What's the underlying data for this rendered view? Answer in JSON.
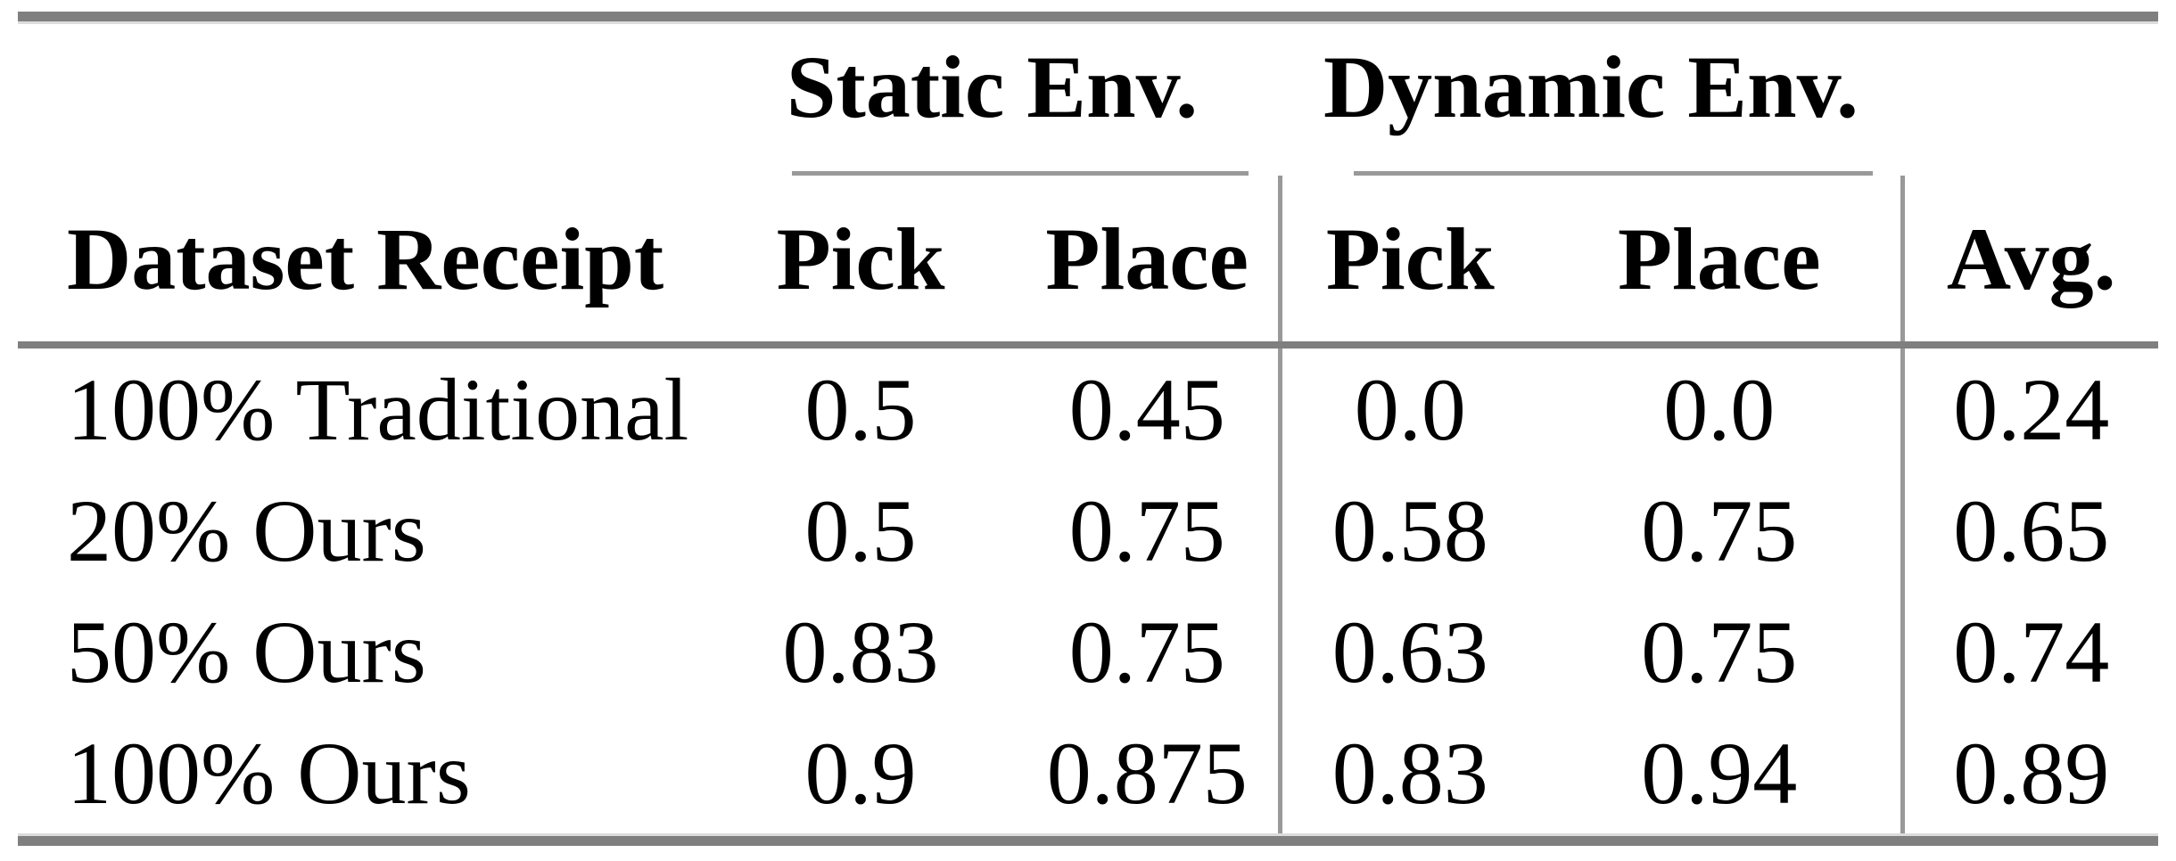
{
  "page": {
    "background": "#ffffff"
  },
  "table": {
    "group_headers": [
      {
        "label": "Static Env."
      },
      {
        "label": "Dynamic Env."
      }
    ],
    "columns": {
      "row_label": "Dataset Receipt",
      "static_pick": "Pick",
      "static_place": "Place",
      "dynamic_pick": "Pick",
      "dynamic_place": "Place",
      "avg": "Avg."
    },
    "rows": [
      {
        "label": "100% Traditional",
        "static_pick": "0.5",
        "static_place": "0.45",
        "dynamic_pick": "0.0",
        "dynamic_place": "0.0",
        "avg": "0.24"
      },
      {
        "label": "20% Ours",
        "static_pick": "0.5",
        "static_place": "0.75",
        "dynamic_pick": "0.58",
        "dynamic_place": "0.75",
        "avg": "0.65"
      },
      {
        "label": "50% Ours",
        "static_pick": "0.83",
        "static_place": "0.75",
        "dynamic_pick": "0.63",
        "dynamic_place": "0.75",
        "avg": "0.74"
      },
      {
        "label": "100% Ours",
        "static_pick": "0.9",
        "static_place": "0.875",
        "dynamic_pick": "0.83",
        "dynamic_place": "0.94",
        "avg": "0.89"
      }
    ],
    "colors": {
      "thick_rule": "#7f7f7f",
      "mid_rule": "#7f7f7f",
      "light_rule": "#999999",
      "text": "#000000"
    }
  }
}
